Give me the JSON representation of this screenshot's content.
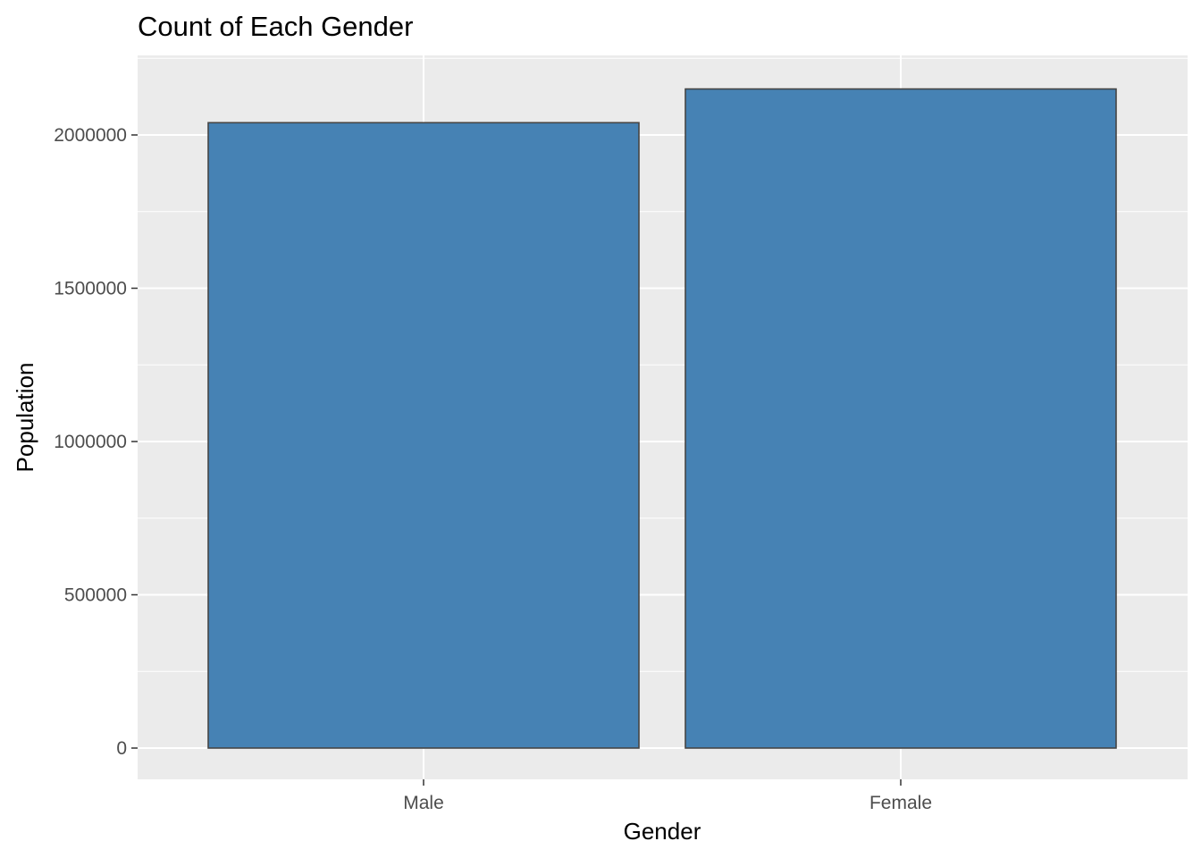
{
  "chart_data": {
    "type": "bar",
    "title": "Count of Each Gender",
    "xlabel": "Gender",
    "ylabel": "Population",
    "categories": [
      "Male",
      "Female"
    ],
    "values": [
      2040000,
      2150000
    ],
    "ylim": [
      -100000,
      2200000
    ],
    "yticks": [
      0,
      500000,
      1000000,
      1500000,
      2000000
    ],
    "ytick_labels": [
      "0",
      "500000",
      "1000000",
      "1500000",
      "2000000"
    ],
    "grid": true,
    "legend": "none",
    "colors": {
      "bar_fill": "#4682b4",
      "bar_stroke": "#454545",
      "panel_background": "#ebebeb",
      "grid": "#ffffff"
    }
  }
}
